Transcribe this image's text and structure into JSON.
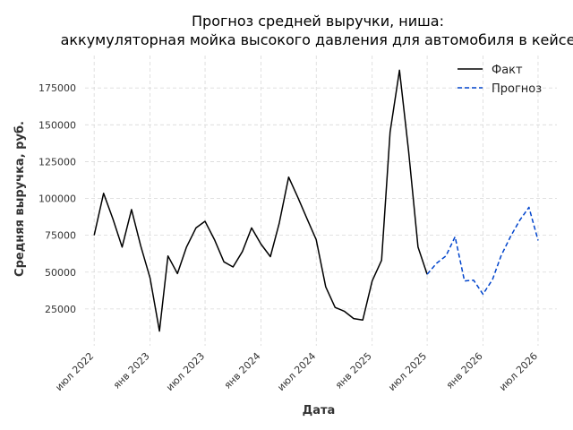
{
  "chart_data": {
    "type": "line",
    "title_lines": [
      "Прогноз средней выручки, ниша:",
      "аккумуляторная мойка высокого давления для автомобиля в кейсе"
    ],
    "xlabel": "Дата",
    "ylabel": "Средняя выручка, руб.",
    "ylim": [
      0,
      197000
    ],
    "yticks": [
      25000,
      50000,
      75000,
      100000,
      125000,
      150000,
      175000
    ],
    "xlim": [
      "2022-06-01",
      "2026-09-01"
    ],
    "xticks": [
      {
        "date": "2022-07-01",
        "label": "июл 2022"
      },
      {
        "date": "2023-01-01",
        "label": "янв 2023"
      },
      {
        "date": "2023-07-01",
        "label": "июл 2023"
      },
      {
        "date": "2024-01-01",
        "label": "янв 2024"
      },
      {
        "date": "2024-07-01",
        "label": "июл 2024"
      },
      {
        "date": "2025-01-01",
        "label": "янв 2025"
      },
      {
        "date": "2025-07-01",
        "label": "июл 2025"
      },
      {
        "date": "2026-01-01",
        "label": "янв 2026"
      },
      {
        "date": "2026-07-01",
        "label": "июл 2026"
      }
    ],
    "grid": true,
    "legend_position": "top-right",
    "series": [
      {
        "name": "Факт",
        "color": "#000000",
        "style": "solid",
        "points": [
          [
            "2022-07-01",
            75000
          ],
          [
            "2022-08-01",
            103500
          ],
          [
            "2022-09-01",
            86000
          ],
          [
            "2022-10-01",
            67000
          ],
          [
            "2022-11-01",
            92500
          ],
          [
            "2022-12-01",
            68000
          ],
          [
            "2023-01-01",
            46000
          ],
          [
            "2023-02-01",
            10000
          ],
          [
            "2023-03-01",
            61000
          ],
          [
            "2023-04-01",
            49000
          ],
          [
            "2023-05-01",
            67000
          ],
          [
            "2023-06-01",
            80000
          ],
          [
            "2023-07-01",
            84500
          ],
          [
            "2023-08-01",
            72000
          ],
          [
            "2023-09-01",
            57000
          ],
          [
            "2023-10-01",
            53500
          ],
          [
            "2023-11-01",
            64000
          ],
          [
            "2023-12-01",
            80000
          ],
          [
            "2024-01-01",
            69000
          ],
          [
            "2024-02-01",
            60500
          ],
          [
            "2024-03-01",
            83000
          ],
          [
            "2024-04-01",
            114500
          ],
          [
            "2024-05-01",
            101000
          ],
          [
            "2024-06-01",
            86000
          ],
          [
            "2024-07-01",
            72000
          ],
          [
            "2024-08-01",
            40000
          ],
          [
            "2024-09-01",
            26000
          ],
          [
            "2024-10-01",
            23500
          ],
          [
            "2024-11-01",
            18500
          ],
          [
            "2024-12-01",
            17500
          ],
          [
            "2025-01-01",
            44000
          ],
          [
            "2025-02-01",
            58000
          ],
          [
            "2025-03-01",
            145000
          ],
          [
            "2025-04-01",
            187000
          ],
          [
            "2025-05-01",
            132000
          ],
          [
            "2025-06-01",
            67000
          ],
          [
            "2025-07-01",
            48500
          ]
        ]
      },
      {
        "name": "Прогноз",
        "color": "#0044cc",
        "style": "dashed",
        "points": [
          [
            "2025-07-01",
            48500
          ],
          [
            "2025-08-01",
            56000
          ],
          [
            "2025-09-01",
            61000
          ],
          [
            "2025-10-01",
            74000
          ],
          [
            "2025-11-01",
            44000
          ],
          [
            "2025-12-01",
            44500
          ],
          [
            "2026-01-01",
            35000
          ],
          [
            "2026-02-01",
            45000
          ],
          [
            "2026-03-01",
            61000
          ],
          [
            "2026-04-01",
            74000
          ],
          [
            "2026-05-01",
            85000
          ],
          [
            "2026-06-01",
            94000
          ],
          [
            "2026-07-01",
            71500
          ]
        ]
      }
    ]
  }
}
